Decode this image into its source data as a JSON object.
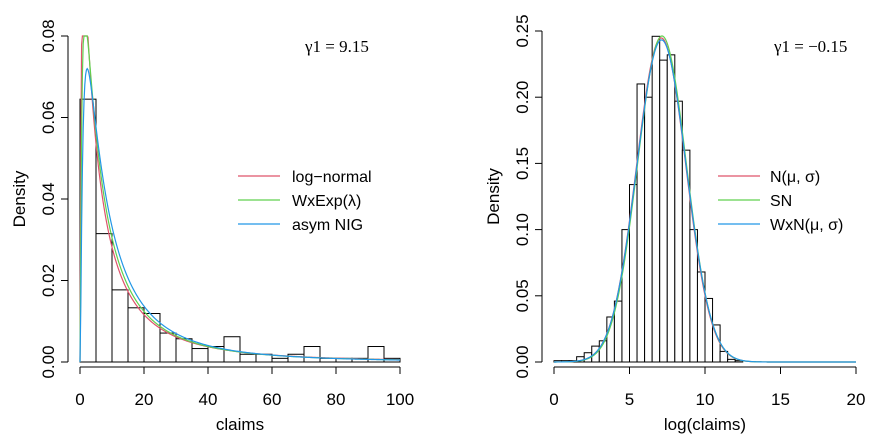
{
  "chart_data": [
    {
      "type": "histogram",
      "xlabel": "claims",
      "ylabel": "Density",
      "xlim": [
        0,
        100
      ],
      "ylim": [
        0,
        0.08
      ],
      "xticks": [
        "0",
        "20",
        "40",
        "60",
        "80",
        "100"
      ],
      "yticks": [
        "0.00",
        "0.02",
        "0.04",
        "0.06",
        "0.08"
      ],
      "annotation": "γ1 = 9.15",
      "bin_width": 5,
      "bins": [
        0,
        5,
        10,
        15,
        20,
        25,
        30,
        35,
        40,
        45,
        50,
        55,
        60,
        65,
        70,
        75,
        80,
        85,
        90,
        95
      ],
      "values": [
        0.0645,
        0.0315,
        0.0177,
        0.0133,
        0.0119,
        0.0071,
        0.0057,
        0.0033,
        0.0038,
        0.0062,
        0.0019,
        0.0019,
        0.0009,
        0.0019,
        0.0038,
        0.0009,
        0.0009,
        0.0009,
        0.0038,
        0.0009
      ],
      "series": [
        {
          "name": "log−normal",
          "color": "#df536b",
          "dist": "lognormal",
          "params": {
            "mu": 2.1,
            "sigma": 1.4
          }
        },
        {
          "name": "WxExp(λ)",
          "color": "#61d04f",
          "dist": "lognormal",
          "params": {
            "mu": 2.15,
            "sigma": 1.3
          }
        },
        {
          "name": "asym NIG",
          "color": "#2297e6",
          "dist": "lognormal",
          "params": {
            "mu": 2.25,
            "sigma": 1.2
          }
        }
      ],
      "legend_position": "right"
    },
    {
      "type": "histogram",
      "xlabel": "log(claims)",
      "ylabel": "Density",
      "xlim": [
        0,
        20
      ],
      "ylim": [
        0,
        0.25
      ],
      "xticks": [
        "0",
        "5",
        "10",
        "15",
        "20"
      ],
      "yticks": [
        "0.00",
        "0.05",
        "0.10",
        "0.15",
        "0.20",
        "0.25"
      ],
      "annotation": "γ1 = −0.15",
      "bin_width": 0.5,
      "bins": [
        0,
        0.5,
        1,
        1.5,
        2,
        2.5,
        3,
        3.5,
        4,
        4.5,
        5,
        5.5,
        6,
        6.5,
        7,
        7.5,
        8,
        8.5,
        9,
        9.5,
        10,
        10.5,
        11,
        11.5,
        12
      ],
      "values": [
        0.001,
        0.001,
        0.001,
        0.004,
        0.007,
        0.012,
        0.016,
        0.034,
        0.046,
        0.1,
        0.134,
        0.21,
        0.2,
        0.246,
        0.228,
        0.232,
        0.197,
        0.16,
        0.1,
        0.068,
        0.048,
        0.028,
        0.008,
        0.002,
        0.001
      ],
      "series": [
        {
          "name": "N(μ, σ)",
          "color": "#df536b",
          "dist": "normal",
          "params": {
            "mu": 7.1,
            "sigma": 1.63
          }
        },
        {
          "name": "SN",
          "color": "#61d04f",
          "dist": "normal",
          "params": {
            "mu": 7.15,
            "sigma": 1.62
          }
        },
        {
          "name": "WxN(μ, σ)",
          "color": "#2297e6",
          "dist": "normal",
          "params": {
            "mu": 7.12,
            "sigma": 1.64
          }
        }
      ],
      "legend_position": "right"
    }
  ]
}
